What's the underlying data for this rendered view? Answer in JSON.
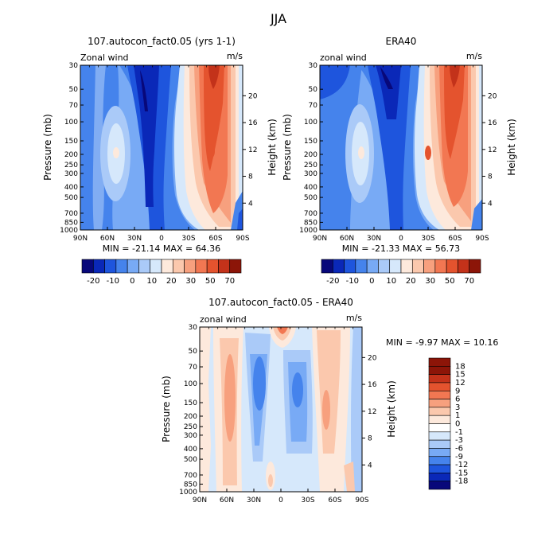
{
  "figure": {
    "title": "JJA"
  },
  "colors": {
    "panel_scale": [
      "#08087a",
      "#0a28b8",
      "#1e55dd",
      "#4583ec",
      "#78aaf5",
      "#aacaf8",
      "#d6e8fb",
      "#fde9dc",
      "#fbc8ad",
      "#f7a07e",
      "#f27752",
      "#e4532e",
      "#c3321a",
      "#8c1508"
    ],
    "diff_scale": [
      "#08087a",
      "#0a28b8",
      "#1e55dd",
      "#4583ec",
      "#78aaf5",
      "#aacaf8",
      "#d6e8fb",
      "#ffffff",
      "#fde9dc",
      "#fbc8ad",
      "#f7a07e",
      "#f27752",
      "#e4532e",
      "#c3321a",
      "#8c1508"
    ]
  },
  "chart_data": [
    {
      "type": "heatmap",
      "title": "107.autocon_fact0.05 (yrs 1-1)",
      "variable_label": "Zonal wind",
      "units": "m/s",
      "ylabel": "Pressure (mb)",
      "ylabel_right": "Height (km)",
      "xlim": [
        "90N",
        "90S"
      ],
      "ylim": [
        1000,
        30
      ],
      "x_ticks": [
        "90N",
        "60N",
        "30N",
        "0",
        "30S",
        "60S",
        "90S"
      ],
      "y_ticks": [
        "30",
        "50",
        "70",
        "100",
        "150",
        "200",
        "250",
        "300",
        "400",
        "500",
        "700",
        "850",
        "1000"
      ],
      "height_ticks": [
        "4",
        "8",
        "12",
        "16",
        "20"
      ],
      "stats_text": "MIN = -21.14   MAX = 64.36",
      "min": -21.14,
      "max": 64.36,
      "colorbar": [
        "-20",
        "-10",
        "0",
        "10",
        "20",
        "30",
        "50",
        "70"
      ],
      "colorbar_levels": [
        -20,
        -10,
        0,
        10,
        20,
        30,
        50,
        70
      ]
    },
    {
      "type": "heatmap",
      "title": "ERA40",
      "variable_label": "zonal wind",
      "units": "m/s",
      "ylabel": "Pressure (mb)",
      "ylabel_right": "Height (km)",
      "xlim": [
        "90N",
        "90S"
      ],
      "ylim": [
        1000,
        30
      ],
      "x_ticks": [
        "90N",
        "60N",
        "30N",
        "0",
        "30S",
        "60S",
        "90S"
      ],
      "y_ticks": [
        "30",
        "50",
        "70",
        "100",
        "150",
        "200",
        "250",
        "300",
        "400",
        "500",
        "700",
        "850",
        "1000"
      ],
      "height_ticks": [
        "4",
        "8",
        "12",
        "16",
        "20"
      ],
      "stats_text": "MIN = -21.33   MAX = 56.73",
      "min": -21.33,
      "max": 56.73,
      "colorbar": [
        "-20",
        "-10",
        "0",
        "10",
        "20",
        "30",
        "50",
        "70"
      ],
      "colorbar_levels": [
        -20,
        -10,
        0,
        10,
        20,
        30,
        50,
        70
      ]
    },
    {
      "type": "heatmap",
      "title": "107.autocon_fact0.05 - ERA40",
      "variable_label": "zonal wind",
      "units": "m/s",
      "ylabel": "Pressure (mb)",
      "ylabel_right": "Height (km)",
      "xlim": [
        "90N",
        "90S"
      ],
      "ylim": [
        1000,
        30
      ],
      "x_ticks": [
        "90N",
        "60N",
        "30N",
        "0",
        "30S",
        "60S",
        "90S"
      ],
      "y_ticks": [
        "30",
        "50",
        "70",
        "100",
        "150",
        "200",
        "250",
        "300",
        "400",
        "500",
        "700",
        "850",
        "1000"
      ],
      "height_ticks": [
        "4",
        "8",
        "12",
        "16",
        "20"
      ],
      "stats_text": "MIN =   -9.97   MAX =   10.16",
      "min": -9.97,
      "max": 10.16,
      "colorbar": [
        "18",
        "15",
        "12",
        "9",
        "6",
        "3",
        "1",
        "0",
        "-1",
        "-3",
        "-6",
        "-9",
        "-12",
        "-15",
        "-18"
      ],
      "colorbar_levels": [
        18,
        15,
        12,
        9,
        6,
        3,
        1,
        0,
        -1,
        -3,
        -6,
        -9,
        -12,
        -15,
        -18
      ]
    }
  ]
}
